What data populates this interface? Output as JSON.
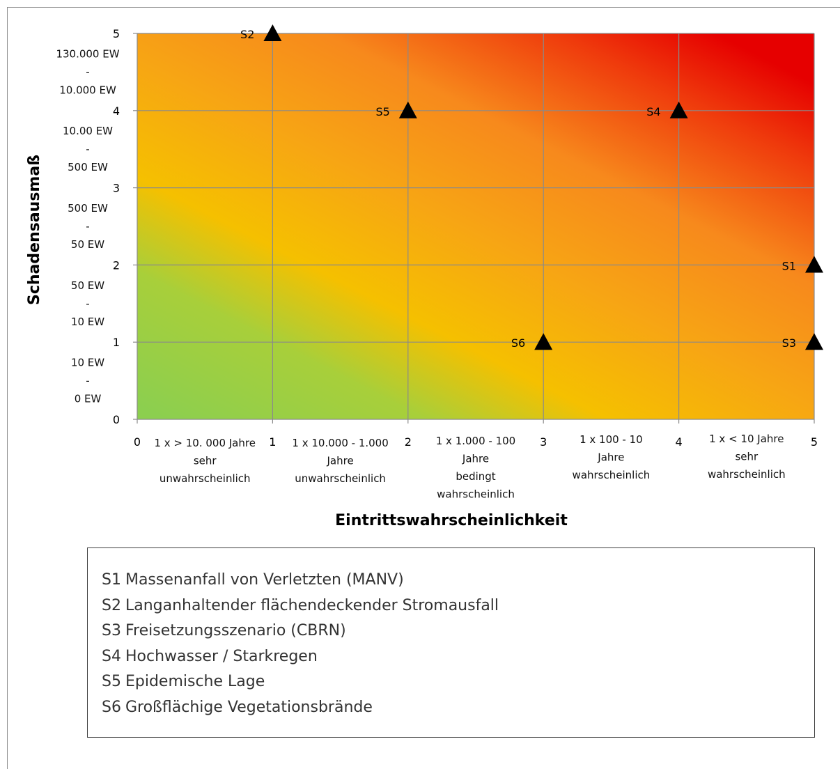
{
  "chart_data": {
    "type": "scatter",
    "xlabel": "Eintrittswahrscheinlichkeit",
    "ylabel": "Schadensausmaß",
    "xlim": [
      0,
      5
    ],
    "ylim": [
      0,
      5
    ],
    "x_ticks": [
      "0",
      "1",
      "2",
      "3",
      "4",
      "5"
    ],
    "y_ticks": [
      "0",
      "1",
      "2",
      "3",
      "4",
      "5"
    ],
    "x_band_labels": [
      {
        "lines": [
          "1 x > 10. 000 Jahre",
          "sehr",
          "unwahrscheinlich"
        ]
      },
      {
        "lines": [
          "1 x 10.000 - 1.000",
          "Jahre",
          "unwahrscheinlich"
        ]
      },
      {
        "lines": [
          "1 x 1.000 - 100",
          "Jahre",
          "bedingt",
          "wahrscheinlich"
        ]
      },
      {
        "lines": [
          "1 x 100 - 10",
          "Jahre",
          "wahrscheinlich"
        ]
      },
      {
        "lines": [
          "1 x < 10 Jahre",
          "sehr",
          "wahrscheinlich"
        ]
      }
    ],
    "y_band_labels": [
      {
        "lines": [
          "10 EW",
          "-",
          "0 EW"
        ]
      },
      {
        "lines": [
          "50 EW",
          "-",
          "10 EW"
        ]
      },
      {
        "lines": [
          "500 EW",
          "-",
          "50 EW"
        ]
      },
      {
        "lines": [
          "10.00 EW",
          "-",
          "500 EW"
        ]
      },
      {
        "lines": [
          "130.000 EW",
          "-",
          "10.000 EW"
        ]
      }
    ],
    "grid": true,
    "marker": "triangle",
    "points": [
      {
        "label": "S1",
        "x": 5,
        "y": 2
      },
      {
        "label": "S2",
        "x": 1,
        "y": 5
      },
      {
        "label": "S3",
        "x": 5,
        "y": 1
      },
      {
        "label": "S4",
        "x": 4,
        "y": 4
      },
      {
        "label": "S5",
        "x": 2,
        "y": 4
      },
      {
        "label": "S6",
        "x": 3,
        "y": 1
      }
    ],
    "background_gradient": [
      "#8ccf4f",
      "#f5c000",
      "#f7891c",
      "#e60000"
    ]
  },
  "legend": {
    "items": [
      {
        "code": "S1",
        "text": "Massenanfall von Verletzten (MANV)"
      },
      {
        "code": "S2",
        "text": "Langanhaltender flächendeckender Stromausfall"
      },
      {
        "code": "S3",
        "text": "Freisetzungsszenario (CBRN)"
      },
      {
        "code": "S4",
        "text": "Hochwasser / Starkregen"
      },
      {
        "code": "S5",
        "text": "Epidemische Lage"
      },
      {
        "code": "S6",
        "text": "Großflächige Vegetationsbrände"
      }
    ]
  }
}
